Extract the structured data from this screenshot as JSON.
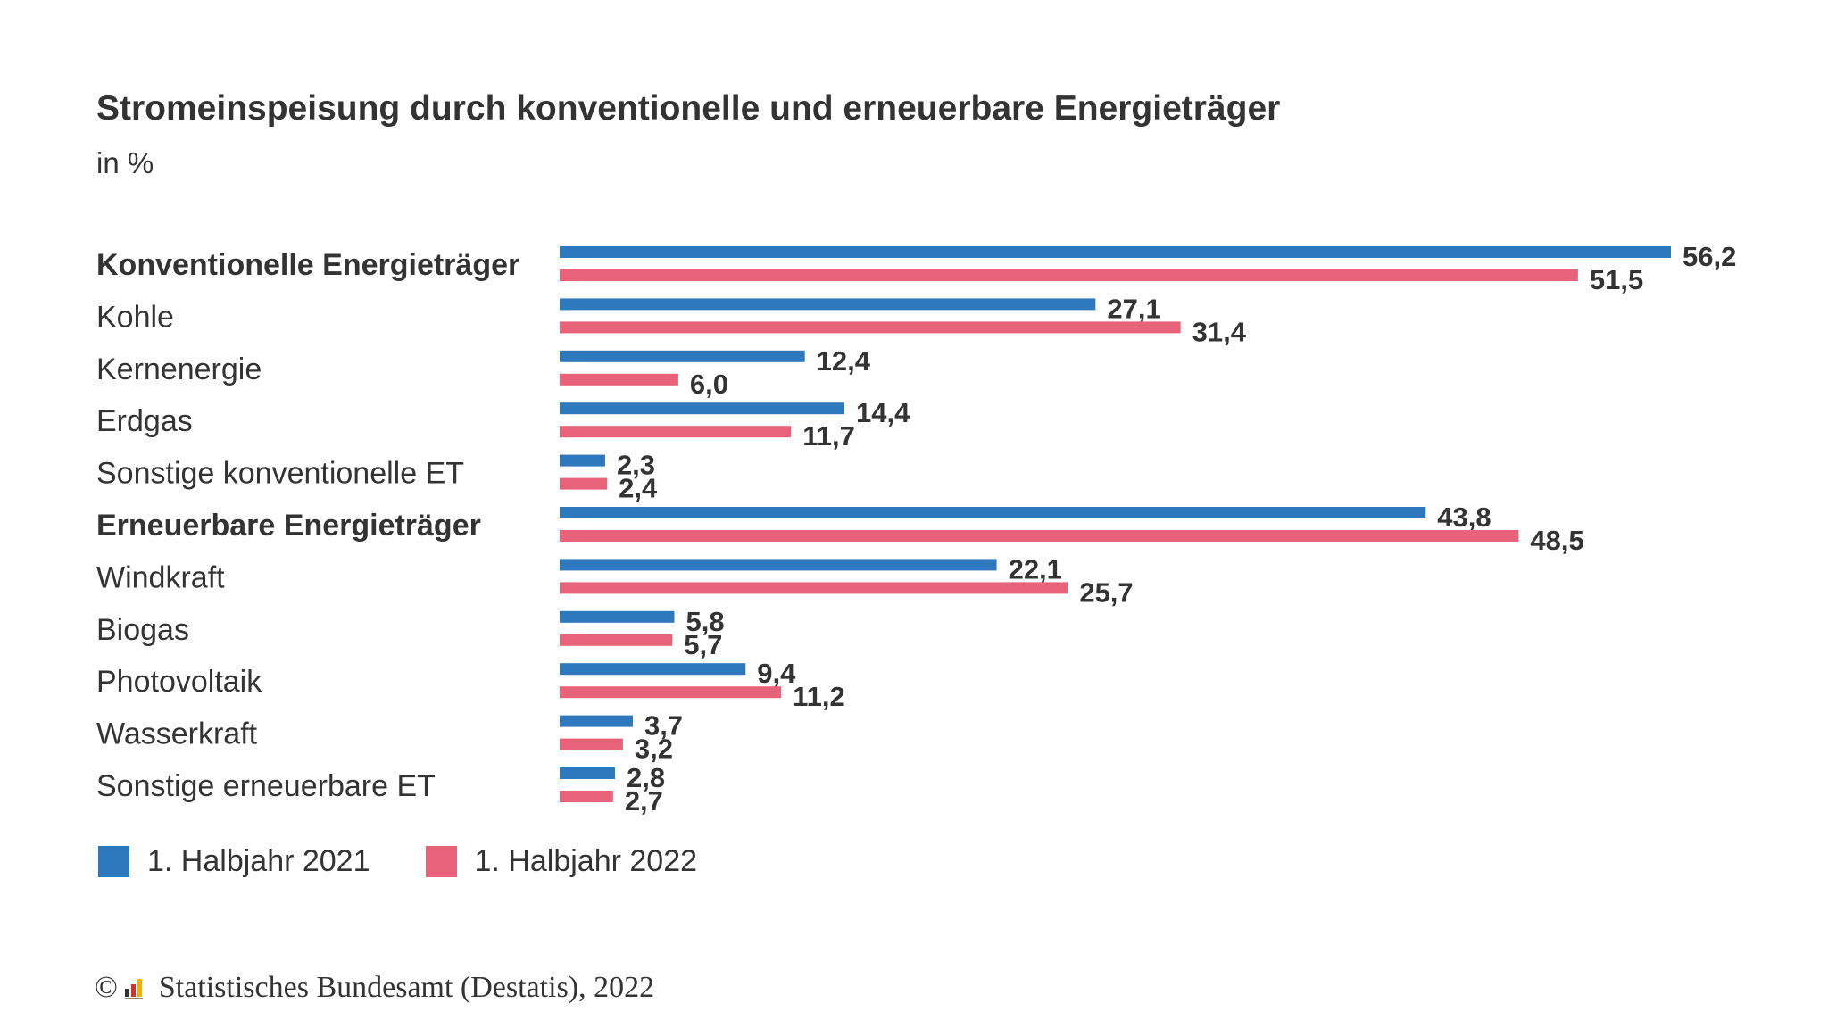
{
  "chart_data": {
    "type": "bar",
    "orientation": "horizontal",
    "title": "Stromeinspeisung durch konventionelle und erneuerbare Energieträger",
    "subtitle": "in %",
    "categories": [
      "Konventionelle Energieträger",
      "Kohle",
      "Kernenergie",
      "Erdgas",
      "Sonstige konventionelle ET",
      "Erneuerbare Energieträger",
      "Windkraft",
      "Biogas",
      "Photovoltaik",
      "Wasserkraft",
      "Sonstige erneuerbare ET"
    ],
    "bold_categories": [
      "Konventionelle Energieträger",
      "Erneuerbare Energieträger"
    ],
    "series": [
      {
        "name": "1. Halbjahr 2021",
        "color": "#2e78bd",
        "values": [
          56.2,
          27.1,
          12.4,
          14.4,
          2.3,
          43.8,
          22.1,
          5.8,
          9.4,
          3.7,
          2.8
        ],
        "labels": [
          "56,2",
          "27,1",
          "12,4",
          "14,4",
          "2,3",
          "43,8",
          "22,1",
          "5,8",
          "9,4",
          "3,7",
          "2,8"
        ]
      },
      {
        "name": "1. Halbjahr 2022",
        "color": "#e8637a",
        "values": [
          51.5,
          31.4,
          6.0,
          11.7,
          2.4,
          48.5,
          25.7,
          5.7,
          11.2,
          3.2,
          2.7
        ],
        "labels": [
          "51,5",
          "31,4",
          "6,0",
          "11,7",
          "2,4",
          "48,5",
          "25,7",
          "5,7",
          "11,2",
          "3,2",
          "2,7"
        ]
      }
    ],
    "xlim": [
      0,
      56.2
    ],
    "grid": false,
    "legend": "bottom-left"
  },
  "source": {
    "copyright": "©",
    "text": "Statistisches Bundesamt (Destatis), 2022"
  }
}
